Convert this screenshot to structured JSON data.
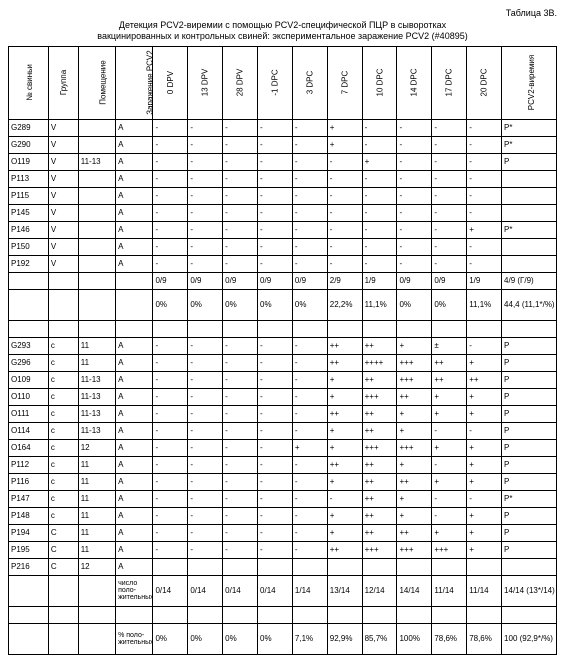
{
  "table_label": "Таблица 3В.",
  "caption_line1": "Детекция PCV2-виремии с помощью PCV2-специфической ПЦР в сыворотках",
  "caption_line2": "вакцинированных и контрольных свиней: экспериментальное заражение PCV2 (#40895)",
  "headers": [
    "№ свиньи",
    "Группа",
    "Помещение",
    "Заражение PCV2",
    "0 DPV",
    "13 DPV",
    "28 DPV",
    "-1 DPC",
    "3 DPC",
    "7 DPC",
    "10 DPC",
    "14 DPC",
    "17 DPC",
    "20 DPC",
    "PCV2-виремия"
  ],
  "rows_v": [
    [
      "G289",
      "V",
      "",
      "A",
      "-",
      "-",
      "-",
      "-",
      "-",
      "+",
      "-",
      "-",
      "-",
      "-",
      "P*"
    ],
    [
      "G290",
      "V",
      "",
      "A",
      "-",
      "-",
      "-",
      "-",
      "-",
      "+",
      "-",
      "-",
      "-",
      "-",
      "P*"
    ],
    [
      "O119",
      "V",
      "11-13",
      "A",
      "-",
      "-",
      "-",
      "-",
      "-",
      "-",
      "+",
      "-",
      "-",
      "-",
      "P"
    ],
    [
      "P113",
      "V",
      "",
      "A",
      "-",
      "-",
      "-",
      "-",
      "-",
      "-",
      "-",
      "-",
      "-",
      "-",
      ""
    ],
    [
      "P115",
      "V",
      "",
      "A",
      "-",
      "-",
      "-",
      "-",
      "-",
      "-",
      "-",
      "-",
      "-",
      "-",
      ""
    ],
    [
      "P145",
      "V",
      "",
      "A",
      "-",
      "-",
      "-",
      "-",
      "-",
      "-",
      "-",
      "-",
      "-",
      "-",
      ""
    ],
    [
      "P146",
      "V",
      "",
      "A",
      "-",
      "-",
      "-",
      "-",
      "-",
      "-",
      "-",
      "-",
      "-",
      "+",
      "P*"
    ],
    [
      "P150",
      "V",
      "",
      "A",
      "-",
      "-",
      "-",
      "-",
      "-",
      "-",
      "-",
      "-",
      "-",
      "-",
      ""
    ],
    [
      "P192",
      "V",
      "",
      "A",
      "-",
      "-",
      "-",
      "-",
      "-",
      "-",
      "-",
      "-",
      "-",
      "-",
      ""
    ]
  ],
  "summary_v_1": [
    "",
    "",
    "",
    "",
    "0/9",
    "0/9",
    "0/9",
    "0/9",
    "0/9",
    "2/9",
    "1/9",
    "0/9",
    "0/9",
    "1/9",
    "4/9 (Г/9)"
  ],
  "summary_v_2": [
    "",
    "",
    "",
    "",
    "0%",
    "0%",
    "0%",
    "0%",
    "0%",
    "22,2%",
    "11,1%",
    "0%",
    "0%",
    "11,1%",
    "44,4 (11,1*/%)"
  ],
  "blank_row": [
    "",
    "",
    "",
    "",
    "",
    "",
    "",
    "",
    "",
    "",
    "",
    "",
    "",
    "",
    ""
  ],
  "rows_c": [
    [
      "G293",
      "c",
      "11",
      "A",
      "-",
      "-",
      "-",
      "-",
      "-",
      "++",
      "++",
      "+",
      "±",
      "-",
      "P"
    ],
    [
      "G296",
      "c",
      "11",
      "A",
      "-",
      "-",
      "-",
      "-",
      "-",
      "++",
      "++++",
      "+++",
      "++",
      "+",
      "P"
    ],
    [
      "O109",
      "c",
      "11-13",
      "A",
      "-",
      "-",
      "-",
      "-",
      "-",
      "+",
      "++",
      "+++",
      "++",
      "++",
      "P"
    ],
    [
      "O110",
      "c",
      "11-13",
      "A",
      "-",
      "-",
      "-",
      "-",
      "-",
      "+",
      "+++",
      "++",
      "+",
      "+",
      "P"
    ],
    [
      "O111",
      "c",
      "11-13",
      "A",
      "-",
      "-",
      "-",
      "-",
      "-",
      "++",
      "++",
      "+",
      "+",
      "+",
      "P"
    ],
    [
      "O114",
      "c",
      "11-13",
      "A",
      "-",
      "-",
      "-",
      "-",
      "-",
      "+",
      "++",
      "+",
      "-",
      "-",
      "P"
    ],
    [
      "O164",
      "c",
      "12",
      "A",
      "-",
      "-",
      "-",
      "-",
      "+",
      "+",
      "+++",
      "+++",
      "+",
      "+",
      "P"
    ],
    [
      "P112",
      "c",
      "11",
      "A",
      "-",
      "-",
      "-",
      "-",
      "-",
      "++",
      "++",
      "+",
      "-",
      "+",
      "P"
    ],
    [
      "P116",
      "c",
      "11",
      "A",
      "-",
      "-",
      "-",
      "-",
      "-",
      "+",
      "++",
      "++",
      "+",
      "+",
      "P"
    ],
    [
      "P147",
      "c",
      "11",
      "A",
      "-",
      "-",
      "-",
      "-",
      "-",
      "-",
      "++",
      "+",
      "-",
      "-",
      "P*"
    ],
    [
      "P148",
      "c",
      "11",
      "A",
      "-",
      "-",
      "-",
      "-",
      "-",
      "+",
      "++",
      "+",
      "-",
      "+",
      "P"
    ],
    [
      "P194",
      "C",
      "11",
      "A",
      "-",
      "-",
      "-",
      "-",
      "-",
      "+",
      "++",
      "++",
      "+",
      "+",
      "P"
    ],
    [
      "P195",
      "C",
      "11",
      "A",
      "-",
      "-",
      "-",
      "-",
      "-",
      "++",
      "+++",
      "+++",
      "+++",
      "+",
      "P"
    ],
    [
      "P216",
      "C",
      "12",
      "A",
      "",
      "",
      "",
      "",
      "",
      "",
      "",
      "",
      "",
      "",
      ""
    ]
  ],
  "summary_c_label1": "число поло-жительных",
  "summary_c_1": [
    "0/14",
    "0/14",
    "0/14",
    "0/14",
    "1/14",
    "13/14",
    "12/14",
    "14/14",
    "11/14",
    "11/14",
    "14/14 (13*/14)"
  ],
  "summary_c_label2": "% поло-жительных",
  "summary_c_2": [
    "0%",
    "0%",
    "0%",
    "0%",
    "7,1%",
    "92,9%",
    "85,7%",
    "100%",
    "78,6%",
    "78,6%",
    "100 (92,9*/%)"
  ]
}
